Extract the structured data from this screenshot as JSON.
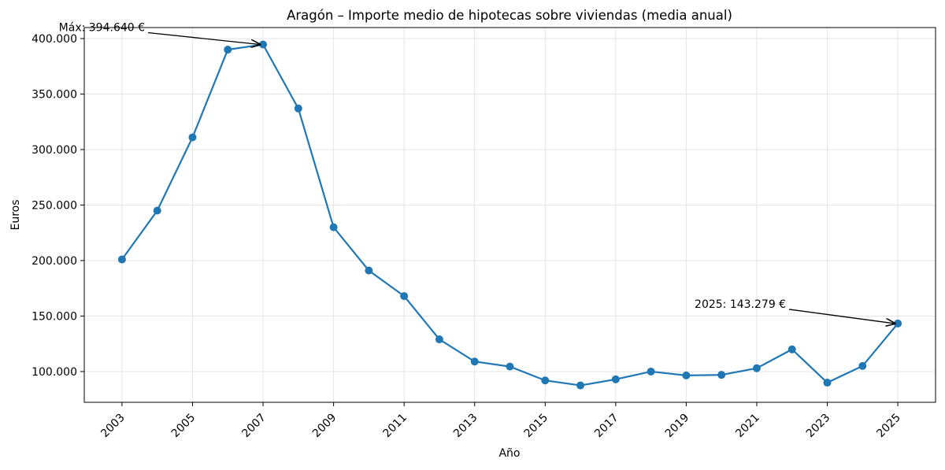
{
  "chart_data": {
    "type": "line",
    "title": "Aragón – Importe medio de hipotecas sobre viviendas (media anual)",
    "x_label": "Año",
    "y_label": "Euros",
    "x": [
      2003,
      2004,
      2005,
      2006,
      2007,
      2008,
      2009,
      2010,
      2011,
      2012,
      2013,
      2014,
      2015,
      2016,
      2017,
      2018,
      2019,
      2020,
      2021,
      2022,
      2023,
      2024,
      2025
    ],
    "series": [
      {
        "color": "#1f77b4",
        "values": [
          201000,
          245000,
          311000,
          390000,
          394640,
          337000,
          230000,
          191000,
          168000,
          129000,
          109000,
          104500,
          92000,
          87500,
          93000,
          100000,
          96500,
          97000,
          103000,
          120000,
          90000,
          105000,
          143279
        ]
      }
    ],
    "xlim": [
      2001.93,
      2026.07
    ],
    "xticks": [
      2003,
      2005,
      2007,
      2009,
      2011,
      2013,
      2015,
      2017,
      2019,
      2021,
      2023,
      2025
    ],
    "ylim": [
      72300,
      409900
    ],
    "yticks": [
      {
        "value": 100000,
        "label": "100.000"
      },
      {
        "value": 150000,
        "label": "150.000"
      },
      {
        "value": 200000,
        "label": "200.000"
      },
      {
        "value": 250000,
        "label": "250.000"
      },
      {
        "value": 300000,
        "label": "300.000"
      },
      {
        "value": 350000,
        "label": "350.000"
      },
      {
        "value": 400000,
        "label": "400.000"
      }
    ],
    "grid": true,
    "annotations": [
      {
        "text": "Máx: 394.640 €"
      },
      {
        "text": "2025: 143.279 €"
      }
    ]
  }
}
